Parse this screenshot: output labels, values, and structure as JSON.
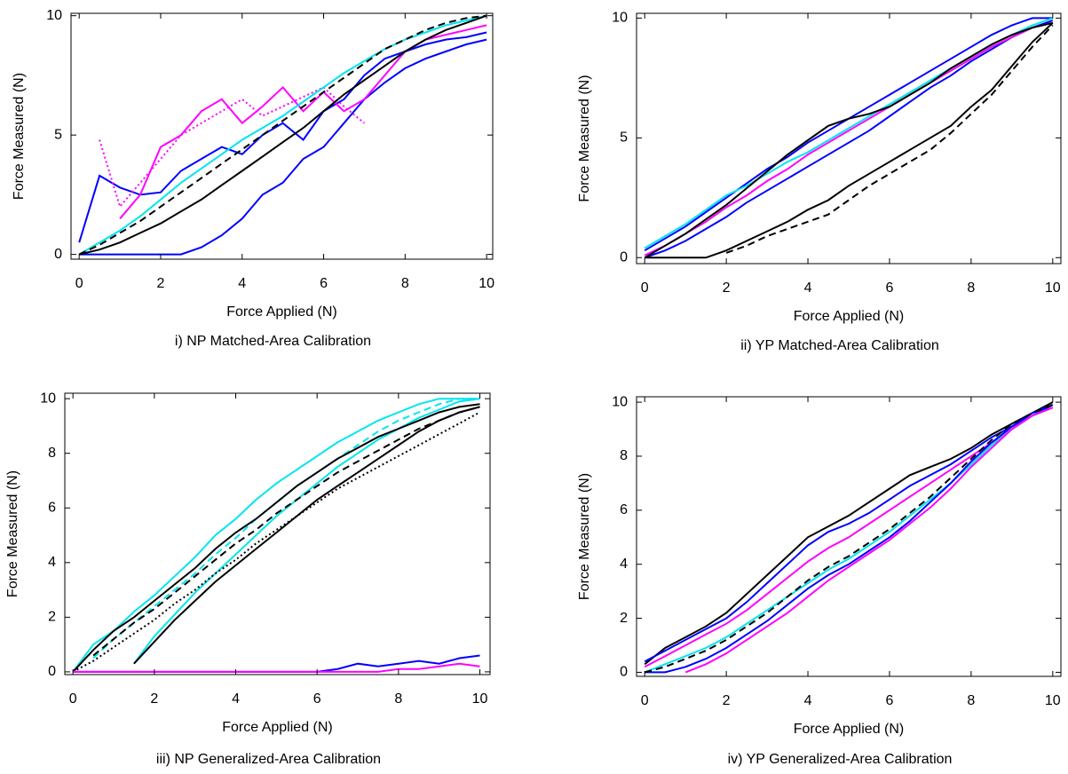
{
  "chart_data": [
    {
      "type": "line",
      "title": "i) NP Matched-Area Calibration",
      "x_label": "Force Applied (N)",
      "y_label": "Force Measured (N)",
      "xlim": [
        -0.2,
        10.15
      ],
      "ylim": [
        -0.2,
        10.1
      ],
      "xticks": [
        0,
        2,
        4,
        6,
        8,
        10
      ],
      "yticks": [
        0,
        5,
        10
      ],
      "x": [
        0,
        0.5,
        1,
        1.5,
        2,
        2.5,
        3,
        3.5,
        4,
        4.5,
        5,
        5.5,
        6,
        6.5,
        7,
        7.5,
        8,
        8.5,
        9,
        9.5,
        10
      ],
      "series": [
        {
          "color": "#0000ff",
          "style": "solid",
          "values": [
            0.5,
            3.3,
            2.8,
            2.5,
            2.6,
            3.5,
            4.0,
            4.5,
            4.2,
            5.0,
            5.5,
            4.8,
            6.0,
            6.5,
            7.5,
            8.2,
            8.5,
            8.8,
            9.0,
            9.1,
            9.3
          ]
        },
        {
          "color": "#0000ff",
          "style": "solid",
          "values": [
            0,
            0,
            0,
            0,
            0,
            0,
            0.3,
            0.8,
            1.5,
            2.5,
            3.0,
            4.0,
            4.5,
            5.5,
            6.5,
            7.2,
            7.8,
            8.2,
            8.5,
            8.8,
            9.0
          ]
        },
        {
          "color": "#ff00ff",
          "style": "solid",
          "values": [
            null,
            null,
            1.5,
            2.5,
            4.5,
            5.0,
            6.0,
            6.5,
            5.5,
            6.2,
            7.0,
            6.0,
            6.8,
            6.0,
            6.5,
            7.5,
            8.5,
            9.0,
            9.2,
            9.4,
            9.6
          ]
        },
        {
          "color": "#ff00ff",
          "style": "dotted",
          "values": [
            null,
            4.8,
            2.0,
            3.0,
            4.0,
            5.0,
            5.5,
            6.0,
            6.5,
            5.8,
            6.2,
            6.6,
            7.0,
            6.2,
            5.5,
            null,
            null,
            null,
            null,
            null,
            null
          ]
        },
        {
          "color": "#00e5ee",
          "style": "solid",
          "values": [
            0,
            0.5,
            1.0,
            1.6,
            2.3,
            3.0,
            3.6,
            4.2,
            4.8,
            5.3,
            5.8,
            6.4,
            7.0,
            7.6,
            8.1,
            8.6,
            9.0,
            9.3,
            9.6,
            9.8,
            10.0
          ]
        },
        {
          "color": "#000000",
          "style": "solid",
          "values": [
            0,
            0.2,
            0.5,
            0.9,
            1.3,
            1.8,
            2.3,
            2.9,
            3.5,
            4.1,
            4.7,
            5.3,
            6.0,
            6.7,
            7.3,
            7.9,
            8.5,
            9.0,
            9.4,
            9.7,
            10.0
          ]
        },
        {
          "color": "#000000",
          "style": "dashed",
          "values": [
            0,
            0.4,
            0.9,
            1.4,
            2.0,
            2.6,
            3.2,
            3.8,
            4.4,
            5.0,
            5.6,
            6.2,
            6.8,
            7.4,
            8.0,
            8.6,
            9.0,
            9.4,
            9.7,
            9.9,
            10.0
          ]
        }
      ]
    },
    {
      "type": "line",
      "title": "ii) YP Matched-Area Calibration",
      "x_label": "Force Applied (N)",
      "y_label": "Force Measured (N)",
      "xlim": [
        -0.2,
        10.2
      ],
      "ylim": [
        -0.25,
        10.2
      ],
      "xticks": [
        0,
        2,
        4,
        6,
        8,
        10
      ],
      "yticks": [
        0,
        5,
        10
      ],
      "x": [
        0,
        0.5,
        1,
        1.5,
        2,
        2.5,
        3,
        3.5,
        4,
        4.5,
        5,
        5.5,
        6,
        6.5,
        7,
        7.5,
        8,
        8.5,
        9,
        9.5,
        10
      ],
      "series": [
        {
          "color": "#0000ff",
          "style": "solid",
          "values": [
            0.3,
            0.8,
            1.3,
            1.9,
            2.5,
            3.1,
            3.7,
            4.2,
            4.8,
            5.3,
            5.8,
            6.3,
            6.8,
            7.3,
            7.8,
            8.3,
            8.8,
            9.3,
            9.7,
            10.0,
            10.0
          ]
        },
        {
          "color": "#0000ff",
          "style": "solid",
          "values": [
            0,
            0.3,
            0.7,
            1.2,
            1.7,
            2.3,
            2.8,
            3.3,
            3.8,
            4.3,
            4.8,
            5.3,
            5.9,
            6.5,
            7.1,
            7.6,
            8.2,
            8.7,
            9.2,
            9.6,
            9.9
          ]
        },
        {
          "color": "#ff00ff",
          "style": "solid",
          "values": [
            0.1,
            0.5,
            1.0,
            1.5,
            2.1,
            2.6,
            3.2,
            3.7,
            4.3,
            4.8,
            5.3,
            5.8,
            6.3,
            6.8,
            7.3,
            7.8,
            8.3,
            8.8,
            9.2,
            9.6,
            9.8
          ]
        },
        {
          "color": "#00e5ee",
          "style": "solid",
          "values": [
            0.4,
            0.9,
            1.4,
            2.0,
            2.6,
            3.0,
            3.5,
            4.0,
            4.4,
            4.9,
            5.4,
            5.9,
            6.4,
            6.9,
            7.4,
            7.9,
            8.4,
            8.9,
            9.3,
            9.7,
            10.0
          ]
        },
        {
          "color": "#000000",
          "style": "solid",
          "values": [
            0,
            0.5,
            1.0,
            1.6,
            2.2,
            2.9,
            3.6,
            4.3,
            4.9,
            5.5,
            5.8,
            6.0,
            6.3,
            6.8,
            7.3,
            7.9,
            8.4,
            8.9,
            9.3,
            9.6,
            9.8
          ]
        },
        {
          "color": "#000000",
          "style": "solid",
          "values": [
            0,
            0,
            0,
            0,
            0.3,
            0.7,
            1.1,
            1.5,
            2.0,
            2.4,
            3.0,
            3.5,
            4.0,
            4.5,
            5.0,
            5.5,
            6.3,
            7.0,
            8.0,
            9.0,
            9.8
          ]
        },
        {
          "color": "#000000",
          "style": "dashed",
          "values": [
            null,
            null,
            null,
            null,
            0.2,
            0.5,
            0.9,
            1.2,
            1.5,
            1.8,
            2.4,
            3.0,
            3.5,
            4.0,
            4.5,
            5.2,
            6.0,
            6.8,
            7.8,
            8.8,
            9.7
          ]
        }
      ]
    },
    {
      "type": "line",
      "title": "iii) NP Generalized-Area Calibration",
      "x_label": "Force Applied (N)",
      "y_label": "Force Measured (N)",
      "xlim": [
        -0.2,
        10.25
      ],
      "ylim": [
        -0.1,
        10.2
      ],
      "xticks": [
        0,
        2,
        4,
        6,
        8,
        10
      ],
      "yticks": [
        0,
        2,
        4,
        6,
        8,
        10
      ],
      "x": [
        0,
        0.5,
        1,
        1.5,
        2,
        2.5,
        3,
        3.5,
        4,
        4.5,
        5,
        5.5,
        6,
        6.5,
        7,
        7.5,
        8,
        8.5,
        9,
        9.5,
        10
      ],
      "series": [
        {
          "color": "#00e5ee",
          "style": "solid",
          "values": [
            0,
            1.0,
            1.5,
            2.2,
            2.8,
            3.5,
            4.2,
            5.0,
            5.6,
            6.3,
            6.9,
            7.4,
            7.9,
            8.4,
            8.8,
            9.2,
            9.5,
            9.8,
            10.0,
            10.0,
            10.0
          ]
        },
        {
          "color": "#00e5ee",
          "style": "dashed",
          "values": [
            null,
            0.5,
            1.2,
            1.8,
            2.4,
            3.0,
            3.6,
            4.3,
            4.9,
            5.6,
            6.2,
            6.8,
            7.3,
            7.8,
            8.3,
            8.8,
            9.2,
            9.5,
            9.8,
            10.0,
            10.0
          ]
        },
        {
          "color": "#00e5ee",
          "style": "solid",
          "values": [
            null,
            null,
            null,
            0.3,
            1.3,
            2.1,
            2.9,
            3.6,
            4.3,
            5.0,
            5.7,
            6.3,
            6.9,
            7.5,
            8.0,
            8.5,
            8.9,
            9.3,
            9.6,
            9.9,
            10.0
          ]
        },
        {
          "color": "#000000",
          "style": "solid",
          "values": [
            0,
            0.8,
            1.5,
            2.0,
            2.6,
            3.2,
            3.8,
            4.5,
            5.1,
            5.6,
            6.2,
            6.8,
            7.3,
            7.8,
            8.2,
            8.6,
            8.9,
            9.2,
            9.5,
            9.7,
            9.8
          ]
        },
        {
          "color": "#000000",
          "style": "dashed",
          "values": [
            null,
            0.6,
            1.2,
            1.8,
            2.3,
            2.9,
            3.5,
            4.1,
            4.7,
            5.2,
            5.8,
            6.3,
            6.8,
            7.3,
            7.7,
            8.1,
            8.5,
            8.9,
            9.2,
            9.5,
            9.7
          ]
        },
        {
          "color": "#000000",
          "style": "solid",
          "values": [
            null,
            null,
            null,
            0.3,
            1.1,
            1.9,
            2.6,
            3.3,
            3.9,
            4.5,
            5.1,
            5.7,
            6.3,
            6.8,
            7.3,
            7.8,
            8.3,
            8.8,
            9.2,
            9.5,
            9.7
          ]
        },
        {
          "color": "#000000",
          "style": "dotted",
          "values": [
            0,
            0.4,
            0.9,
            1.4,
            1.9,
            2.5,
            3.0,
            3.6,
            4.1,
            4.7,
            5.2,
            5.7,
            6.2,
            6.7,
            7.1,
            7.5,
            7.9,
            8.3,
            8.7,
            9.1,
            9.5
          ]
        },
        {
          "color": "#0000ff",
          "style": "solid",
          "values": [
            0,
            0,
            0,
            0,
            0,
            0,
            0,
            0,
            0,
            0,
            0,
            0,
            0,
            0.1,
            0.3,
            0.2,
            0.3,
            0.4,
            0.3,
            0.5,
            0.6
          ]
        },
        {
          "color": "#ff00ff",
          "style": "solid",
          "values": [
            0,
            0,
            0,
            0,
            0,
            0,
            0,
            0,
            0,
            0,
            0,
            0,
            0,
            0,
            0,
            0,
            0.1,
            0.1,
            0.2,
            0.3,
            0.2
          ]
        }
      ]
    },
    {
      "type": "line",
      "title": "iv) YP Generalized-Area Calibration",
      "x_label": "Force Applied (N)",
      "y_label": "Force Measured (N)",
      "xlim": [
        -0.2,
        10.2
      ],
      "ylim": [
        -0.15,
        10.2
      ],
      "xticks": [
        0,
        2,
        4,
        6,
        8,
        10
      ],
      "yticks": [
        0,
        2,
        4,
        6,
        8,
        10
      ],
      "x": [
        0,
        0.5,
        1,
        1.5,
        2,
        2.5,
        3,
        3.5,
        4,
        4.5,
        5,
        5.5,
        6,
        6.5,
        7,
        7.5,
        8,
        8.5,
        9,
        9.5,
        10
      ],
      "series": [
        {
          "color": "#000000",
          "style": "solid",
          "values": [
            0.3,
            0.9,
            1.3,
            1.7,
            2.2,
            2.9,
            3.6,
            4.3,
            5.0,
            5.4,
            5.8,
            6.3,
            6.8,
            7.3,
            7.6,
            7.9,
            8.3,
            8.8,
            9.2,
            9.6,
            10.0
          ]
        },
        {
          "color": "#0000ff",
          "style": "solid",
          "values": [
            0.4,
            0.8,
            1.2,
            1.6,
            2.0,
            2.6,
            3.3,
            4.0,
            4.7,
            5.2,
            5.5,
            5.9,
            6.4,
            6.9,
            7.3,
            7.7,
            8.2,
            8.7,
            9.1,
            9.5,
            9.9
          ]
        },
        {
          "color": "#ff00ff",
          "style": "solid",
          "values": [
            0.2,
            0.6,
            1.0,
            1.4,
            1.8,
            2.3,
            2.9,
            3.5,
            4.1,
            4.6,
            5.0,
            5.5,
            6.0,
            6.5,
            7.0,
            7.5,
            8.0,
            8.5,
            9.0,
            9.5,
            9.8
          ]
        },
        {
          "color": "#00e5ee",
          "style": "solid",
          "values": [
            0,
            0.3,
            0.6,
            0.9,
            1.3,
            1.8,
            2.3,
            2.8,
            3.3,
            3.8,
            4.2,
            4.7,
            5.2,
            5.8,
            6.4,
            7.0,
            7.7,
            8.4,
            9.0,
            9.5,
            9.8
          ]
        },
        {
          "color": "#0000ff",
          "style": "solid",
          "values": [
            0,
            0,
            0.2,
            0.5,
            0.9,
            1.4,
            1.9,
            2.5,
            3.1,
            3.6,
            4.0,
            4.5,
            5.0,
            5.6,
            6.3,
            7.0,
            7.8,
            8.5,
            9.1,
            9.6,
            9.9
          ]
        },
        {
          "color": "#000000",
          "style": "dashed",
          "values": [
            0,
            0.2,
            0.5,
            0.8,
            1.2,
            1.7,
            2.2,
            2.8,
            3.4,
            3.9,
            4.3,
            4.8,
            5.3,
            5.9,
            6.5,
            7.2,
            7.9,
            8.6,
            9.2,
            9.6,
            9.9
          ]
        },
        {
          "color": "#ff00ff",
          "style": "solid",
          "values": [
            null,
            null,
            0,
            0.3,
            0.7,
            1.2,
            1.7,
            2.2,
            2.8,
            3.4,
            3.9,
            4.4,
            4.9,
            5.5,
            6.1,
            6.8,
            7.6,
            8.3,
            9.0,
            9.5,
            9.8
          ]
        }
      ]
    }
  ]
}
